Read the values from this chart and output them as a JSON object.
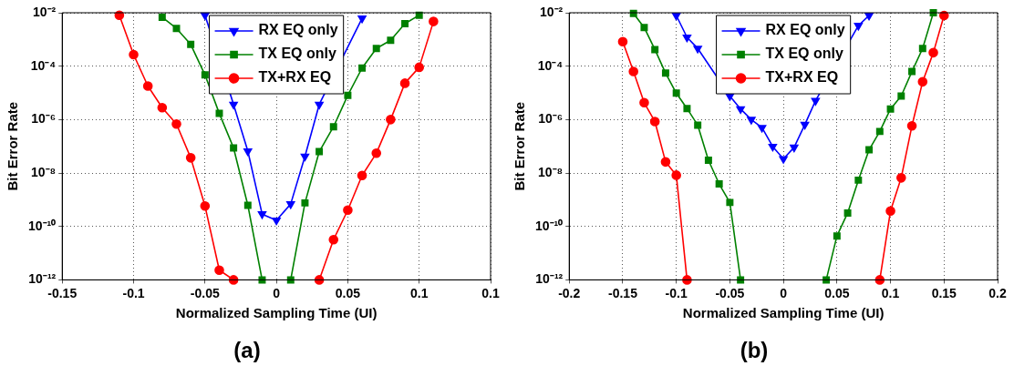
{
  "chart_data": [
    {
      "type": "line",
      "title": "(a)",
      "xlabel": "Normalized Sampling Time (UI)",
      "ylabel": "Bit Error Rate",
      "log": "y",
      "grid": true,
      "legend": "top",
      "line_style": "solid",
      "xlim": [
        -0.15,
        0.15
      ],
      "xticks": [
        -0.15,
        -0.1,
        -0.05,
        0,
        0.05,
        0.1,
        {
          "value": 0.15,
          "label": "0.1"
        }
      ],
      "ylim": [
        1e-12,
        0.01
      ],
      "yticks": [
        {
          "value": 1e-12,
          "label": "10⁻¹²"
        },
        {
          "value": 1e-10,
          "label": "10⁻¹⁰"
        },
        {
          "value": 1e-08,
          "label": "10⁻⁸"
        },
        {
          "value": 1e-06,
          "label": "10⁻⁶"
        },
        {
          "value": 0.0001,
          "label": "10⁻⁴"
        },
        {
          "value": 0.01,
          "label": "10⁻²"
        }
      ],
      "series": [
        {
          "name": "RX EQ only",
          "color": "#0000ff",
          "marker": "triangle",
          "x": [
            -0.05,
            -0.03,
            -0.02,
            -0.01,
            0,
            0.01,
            0.02,
            0.03,
            0.06
          ],
          "values": [
            0.0081,
            3.7e-06,
            6.6e-08,
            2.9e-10,
            1.7e-10,
            6.9e-10,
            4.2e-08,
            3.7e-06,
            0.0062
          ]
        },
        {
          "name": "TX EQ only",
          "color": "#008000",
          "marker": "square",
          "x": [
            -0.08,
            -0.07,
            -0.06,
            -0.05,
            -0.04,
            -0.03,
            -0.02,
            -0.01,
            0,
            0.01,
            0.02,
            0.03,
            0.04,
            0.05,
            0.06,
            0.07,
            0.08,
            0.09,
            0.1
          ],
          "values": [
            0.0068,
            0.0026,
            0.00065,
            4.7e-05,
            1.7e-06,
            8.7e-08,
            6.2e-10,
            1e-12,
            null,
            1e-12,
            7.6e-10,
            6.3e-08,
            5.4e-07,
            8.1e-06,
            8.5e-05,
            0.00046,
            0.00093,
            0.0039,
            0.0081
          ]
        },
        {
          "name": "TX+RX EQ",
          "color": "#ff0000",
          "marker": "circle",
          "x": [
            -0.11,
            -0.1,
            -0.09,
            -0.08,
            -0.07,
            -0.06,
            -0.05,
            -0.04,
            -0.03,
            0,
            0.03,
            0.04,
            0.05,
            0.06,
            0.07,
            0.08,
            0.09,
            0.1,
            0.11
          ],
          "values": [
            0.0081,
            0.00027,
            1.8e-05,
            2.8e-06,
            6.8e-07,
            3.7e-08,
            5.8e-10,
            2.3e-12,
            1e-12,
            null,
            1e-12,
            3.2e-11,
            4.1e-10,
            8.1e-09,
            5.5e-08,
            1e-06,
            2.3e-05,
            9.1e-05,
            0.0047
          ]
        }
      ]
    },
    {
      "type": "line",
      "title": "(b)",
      "xlabel": "Normalized Sampling Time (UI)",
      "ylabel": "Bit Error Rate",
      "log": "y",
      "grid": true,
      "legend": "top",
      "line_style": "solid",
      "xlim": [
        -0.2,
        0.2
      ],
      "xticks": [
        -0.2,
        -0.15,
        -0.1,
        -0.05,
        0,
        0.05,
        0.1,
        0.15,
        0.2
      ],
      "ylim": [
        1e-12,
        0.01
      ],
      "yticks": [
        {
          "value": 1e-12,
          "label": "10⁻¹²"
        },
        {
          "value": 1e-10,
          "label": "10⁻¹⁰"
        },
        {
          "value": 1e-08,
          "label": "10⁻⁸"
        },
        {
          "value": 1e-06,
          "label": "10⁻⁶"
        },
        {
          "value": 0.0001,
          "label": "10⁻⁴"
        },
        {
          "value": 0.01,
          "label": "10⁻²"
        }
      ],
      "series": [
        {
          "name": "RX EQ only",
          "color": "#0000ff",
          "marker": "triangle",
          "x": [
            -0.1,
            -0.09,
            -0.08,
            -0.05,
            -0.04,
            -0.03,
            -0.02,
            -0.01,
            0,
            0.01,
            0.02,
            0.03,
            0.07,
            0.08
          ],
          "values": [
            0.0079,
            0.0012,
            0.00046,
            7.6e-06,
            2.5e-06,
            1e-06,
            5e-07,
            9.8e-08,
            3.4e-08,
            9.1e-08,
            6.5e-07,
            5.1e-06,
            0.0033,
            0.0079
          ]
        },
        {
          "name": "TX EQ only",
          "color": "#008000",
          "marker": "square",
          "x": [
            -0.14,
            -0.13,
            -0.12,
            -0.11,
            -0.1,
            -0.09,
            -0.08,
            -0.07,
            -0.06,
            -0.05,
            -0.04,
            0,
            0.04,
            0.05,
            0.06,
            0.07,
            0.08,
            0.09,
            0.1,
            0.11,
            0.12,
            0.13,
            0.14
          ],
          "values": [
            0.0095,
            0.0028,
            0.00042,
            5.5e-05,
            9.8e-06,
            2.6e-06,
            6.2e-07,
            3e-08,
            3.9e-09,
            7.9e-10,
            1e-12,
            null,
            1e-12,
            4.4e-11,
            3.2e-10,
            5.4e-09,
            7.4e-08,
            3.6e-07,
            2.5e-06,
            7.6e-06,
            6.3e-05,
            0.00046,
            0.01
          ]
        },
        {
          "name": "TX+RX EQ",
          "color": "#ff0000",
          "marker": "circle",
          "x": [
            -0.15,
            -0.14,
            -0.13,
            -0.12,
            -0.11,
            -0.1,
            -0.09,
            0,
            0.09,
            0.1,
            0.11,
            0.12,
            0.13,
            0.14,
            0.15
          ],
          "values": [
            0.00083,
            6.3e-05,
            4.3e-06,
            8.5e-07,
            2.6e-08,
            8.3e-09,
            1e-12,
            null,
            1e-12,
            3.8e-10,
            6.6e-09,
            5.8e-07,
            2.6e-05,
            0.00032,
            0.0079
          ]
        }
      ]
    }
  ]
}
